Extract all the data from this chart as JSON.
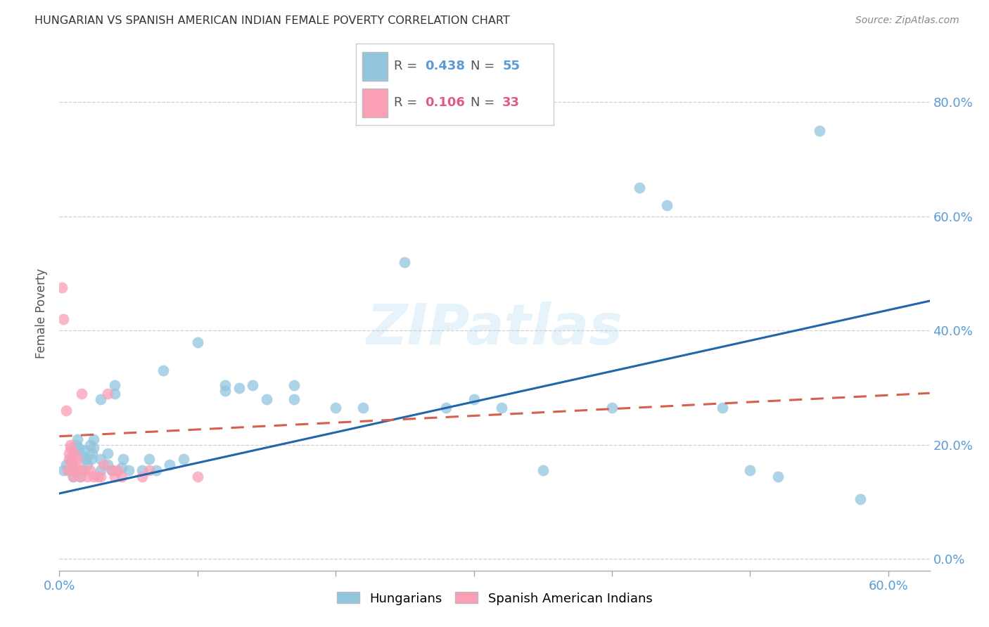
{
  "title": "HUNGARIAN VS SPANISH AMERICAN INDIAN FEMALE POVERTY CORRELATION CHART",
  "source": "Source: ZipAtlas.com",
  "ylabel": "Female Poverty",
  "xlim": [
    0.0,
    0.63
  ],
  "ylim": [
    -0.02,
    0.88
  ],
  "blue_color": "#92c5de",
  "blue_line_color": "#2166ac",
  "pink_color": "#f4a582",
  "pink_color2": "#fa9fb5",
  "pink_line_color": "#d6604d",
  "blue_intercept": 0.115,
  "blue_slope": 0.535,
  "pink_intercept": 0.215,
  "pink_slope": 0.12,
  "blue_scatter": [
    [
      0.003,
      0.155
    ],
    [
      0.005,
      0.165
    ],
    [
      0.007,
      0.155
    ],
    [
      0.008,
      0.17
    ],
    [
      0.01,
      0.18
    ],
    [
      0.01,
      0.19
    ],
    [
      0.01,
      0.155
    ],
    [
      0.01,
      0.145
    ],
    [
      0.012,
      0.2
    ],
    [
      0.013,
      0.21
    ],
    [
      0.014,
      0.195
    ],
    [
      0.015,
      0.145
    ],
    [
      0.016,
      0.155
    ],
    [
      0.017,
      0.18
    ],
    [
      0.018,
      0.19
    ],
    [
      0.019,
      0.175
    ],
    [
      0.02,
      0.165
    ],
    [
      0.022,
      0.2
    ],
    [
      0.023,
      0.175
    ],
    [
      0.024,
      0.185
    ],
    [
      0.025,
      0.21
    ],
    [
      0.025,
      0.195
    ],
    [
      0.03,
      0.175
    ],
    [
      0.03,
      0.155
    ],
    [
      0.03,
      0.28
    ],
    [
      0.035,
      0.165
    ],
    [
      0.035,
      0.185
    ],
    [
      0.038,
      0.155
    ],
    [
      0.04,
      0.29
    ],
    [
      0.04,
      0.305
    ],
    [
      0.045,
      0.16
    ],
    [
      0.046,
      0.175
    ],
    [
      0.05,
      0.155
    ],
    [
      0.06,
      0.155
    ],
    [
      0.065,
      0.175
    ],
    [
      0.07,
      0.155
    ],
    [
      0.075,
      0.33
    ],
    [
      0.08,
      0.165
    ],
    [
      0.09,
      0.175
    ],
    [
      0.1,
      0.38
    ],
    [
      0.12,
      0.305
    ],
    [
      0.12,
      0.295
    ],
    [
      0.13,
      0.3
    ],
    [
      0.14,
      0.305
    ],
    [
      0.15,
      0.28
    ],
    [
      0.17,
      0.28
    ],
    [
      0.17,
      0.305
    ],
    [
      0.2,
      0.265
    ],
    [
      0.22,
      0.265
    ],
    [
      0.25,
      0.52
    ],
    [
      0.28,
      0.265
    ],
    [
      0.3,
      0.28
    ],
    [
      0.32,
      0.265
    ],
    [
      0.35,
      0.155
    ],
    [
      0.4,
      0.265
    ],
    [
      0.42,
      0.65
    ],
    [
      0.44,
      0.62
    ],
    [
      0.48,
      0.265
    ],
    [
      0.5,
      0.155
    ],
    [
      0.52,
      0.145
    ],
    [
      0.55,
      0.75
    ],
    [
      0.58,
      0.105
    ]
  ],
  "pink_scatter": [
    [
      0.002,
      0.475
    ],
    [
      0.003,
      0.42
    ],
    [
      0.005,
      0.26
    ],
    [
      0.006,
      0.155
    ],
    [
      0.007,
      0.175
    ],
    [
      0.007,
      0.185
    ],
    [
      0.008,
      0.2
    ],
    [
      0.008,
      0.195
    ],
    [
      0.009,
      0.175
    ],
    [
      0.009,
      0.165
    ],
    [
      0.01,
      0.155
    ],
    [
      0.01,
      0.145
    ],
    [
      0.011,
      0.185
    ],
    [
      0.012,
      0.165
    ],
    [
      0.013,
      0.175
    ],
    [
      0.014,
      0.155
    ],
    [
      0.015,
      0.145
    ],
    [
      0.016,
      0.29
    ],
    [
      0.018,
      0.155
    ],
    [
      0.02,
      0.145
    ],
    [
      0.022,
      0.155
    ],
    [
      0.025,
      0.145
    ],
    [
      0.028,
      0.145
    ],
    [
      0.03,
      0.145
    ],
    [
      0.032,
      0.165
    ],
    [
      0.035,
      0.29
    ],
    [
      0.038,
      0.155
    ],
    [
      0.04,
      0.145
    ],
    [
      0.042,
      0.155
    ],
    [
      0.045,
      0.145
    ],
    [
      0.06,
      0.145
    ],
    [
      0.065,
      0.155
    ],
    [
      0.1,
      0.145
    ]
  ],
  "watermark": "ZIPatlas",
  "background_color": "#ffffff",
  "grid_color": "#d0d0d0"
}
